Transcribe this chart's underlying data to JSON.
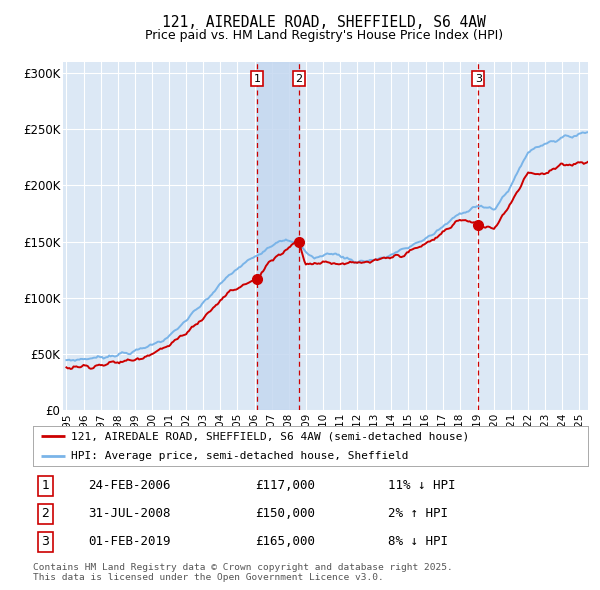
{
  "title": "121, AIREDALE ROAD, SHEFFIELD, S6 4AW",
  "subtitle": "Price paid vs. HM Land Registry's House Price Index (HPI)",
  "ylabel_ticks": [
    "£0",
    "£50K",
    "£100K",
    "£150K",
    "£200K",
    "£250K",
    "£300K"
  ],
  "ytick_values": [
    0,
    50000,
    100000,
    150000,
    200000,
    250000,
    300000
  ],
  "ylim": [
    0,
    310000
  ],
  "xlim_start": 1994.8,
  "xlim_end": 2025.5,
  "plot_bg_color": "#dce8f5",
  "grid_color": "#ffffff",
  "hpi_color": "#7ab4e8",
  "price_color": "#cc0000",
  "vline_color": "#cc0000",
  "vspan_color": "#c5d8f0",
  "transactions": [
    {
      "label": "1",
      "date": 2006.15,
      "price": 117000,
      "date_str": "24-FEB-2006",
      "price_str": "£117,000",
      "note": "11% ↓ HPI"
    },
    {
      "label": "2",
      "date": 2008.58,
      "price": 150000,
      "date_str": "31-JUL-2008",
      "price_str": "£150,000",
      "note": "2% ↑ HPI"
    },
    {
      "label": "3",
      "date": 2019.08,
      "price": 165000,
      "date_str": "01-FEB-2019",
      "price_str": "£165,000",
      "note": "8% ↓ HPI"
    }
  ],
  "legend_label_price": "121, AIREDALE ROAD, SHEFFIELD, S6 4AW (semi-detached house)",
  "legend_label_hpi": "HPI: Average price, semi-detached house, Sheffield",
  "footer_text": "Contains HM Land Registry data © Crown copyright and database right 2025.\nThis data is licensed under the Open Government Licence v3.0.",
  "x_years": [
    1995,
    1996,
    1997,
    1998,
    1999,
    2000,
    2001,
    2002,
    2003,
    2004,
    2005,
    2006,
    2007,
    2008,
    2009,
    2010,
    2011,
    2012,
    2013,
    2014,
    2015,
    2016,
    2017,
    2018,
    2019,
    2020,
    2021,
    2022,
    2023,
    2024,
    2025
  ]
}
